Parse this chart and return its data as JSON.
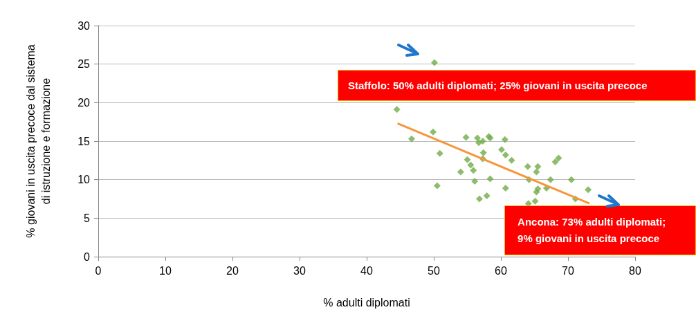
{
  "chart_data": {
    "type": "scatter",
    "xlabel": "% adulti diplomati",
    "ylabel": "% giovani in uscita precoce dal sistema\ndi istruzione e formazione",
    "xlim": [
      0,
      80
    ],
    "xticks": [
      0,
      10,
      20,
      30,
      40,
      50,
      60,
      70,
      80
    ],
    "ylim": [
      0,
      30
    ],
    "yticks": [
      0,
      5,
      10,
      15,
      20,
      25,
      30
    ],
    "grid": "y",
    "marker": "diamond",
    "series": [
      {
        "color": "#70ad47",
        "x": [
          50.1,
          44.5,
          46.7,
          49.9,
          50.9,
          50.5,
          54.0,
          54.8,
          55.0,
          55.5,
          55.9,
          56.1,
          56.5,
          56.7,
          57.3,
          57.4,
          57.3,
          56.8,
          57.9,
          58.2,
          58.4,
          58.4,
          60.1,
          60.6,
          60.7,
          60.7,
          61.6,
          64.0,
          64.1,
          64.2,
          65.3,
          65.5,
          65.3,
          65.5,
          65.1,
          66.8,
          67.4,
          68.1,
          68.6,
          70.5,
          70.8,
          71.1,
          73.0
        ],
        "values": [
          25.2,
          19.1,
          15.3,
          16.2,
          13.4,
          9.2,
          11.0,
          15.5,
          12.6,
          11.9,
          11.2,
          9.8,
          15.4,
          14.8,
          15.0,
          13.5,
          12.7,
          7.5,
          7.9,
          15.6,
          15.4,
          10.1,
          13.9,
          15.2,
          13.2,
          8.9,
          12.5,
          11.7,
          6.9,
          10.0,
          11.0,
          11.7,
          8.4,
          8.8,
          7.2,
          8.9,
          10.0,
          12.3,
          12.8,
          10.0,
          null,
          7.5,
          8.7
        ]
      },
      {
        "type": "line",
        "color": "#f7963c",
        "marker": "none",
        "x": [
          44.6,
          73.2
        ],
        "values": [
          17.3,
          6.9
        ]
      }
    ],
    "annotations": [
      {
        "text": "Staffolo: 50% adulti diplomati; 25% giovani in uscita precoce",
        "x": 50.1,
        "y": 25.2
      },
      {
        "text": "Ancona: 73% adulti diplomati; 9% giovani in uscita precoce",
        "x": 73.0,
        "y": 8.7
      }
    ]
  }
}
